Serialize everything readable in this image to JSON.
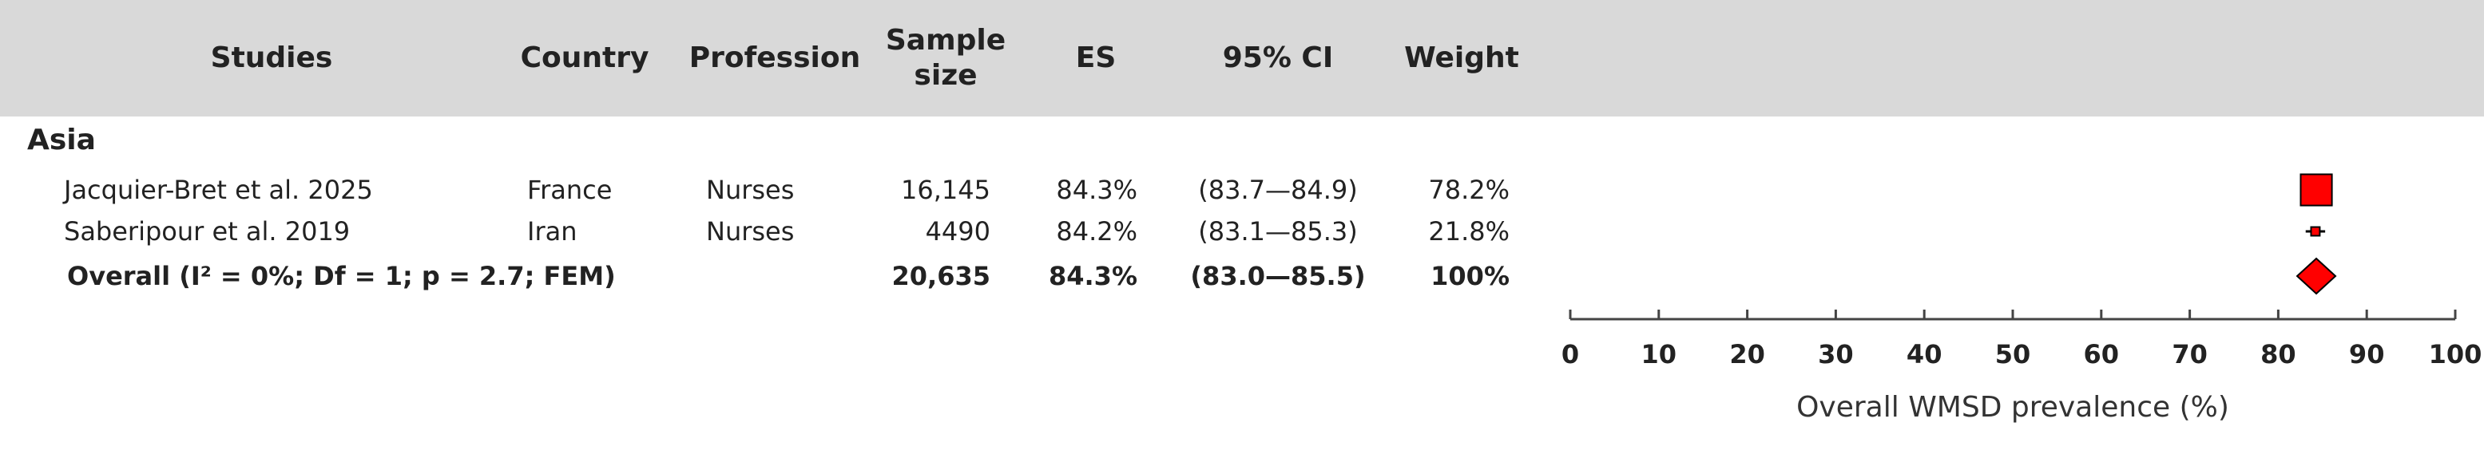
{
  "chart_data": {
    "type": "forest",
    "columns": [
      "Studies",
      "Country",
      "Profession",
      "Sample size",
      "ES",
      "95% CI",
      "Weight"
    ],
    "group": "Asia",
    "rows": [
      {
        "study": "Jacquier-Bret et al. 2025",
        "country": "France",
        "profession": "Nurses",
        "sample_size": "16,145",
        "es": 84.3,
        "es_label": "84.3%",
        "ci": [
          83.7,
          84.9
        ],
        "ci_label": "(83.7—84.9)",
        "weight": 78.2,
        "weight_label": "78.2%"
      },
      {
        "study": "Saberipour et al. 2019",
        "country": "Iran",
        "profession": "Nurses",
        "sample_size": "4490",
        "es": 84.2,
        "es_label": "84.2%",
        "ci": [
          83.1,
          85.3
        ],
        "ci_label": "(83.1—85.3)",
        "weight": 21.8,
        "weight_label": "21.8%"
      }
    ],
    "overall": {
      "study": "Overall (I² = 0%; Df = 1; p = 2.7; FEM)",
      "sample_size": "20,635",
      "es": 84.3,
      "es_label": "84.3%",
      "ci": [
        83.0,
        85.5
      ],
      "ci_label": "(83.0—85.5)",
      "weight": 100,
      "weight_label": "100%"
    },
    "xlim": [
      0,
      100
    ],
    "xticks": [
      0,
      10,
      20,
      30,
      40,
      50,
      60,
      70,
      80,
      90,
      100
    ],
    "xlabel": "Overall WMSD prevalence (%)",
    "color": "#ff0000"
  }
}
